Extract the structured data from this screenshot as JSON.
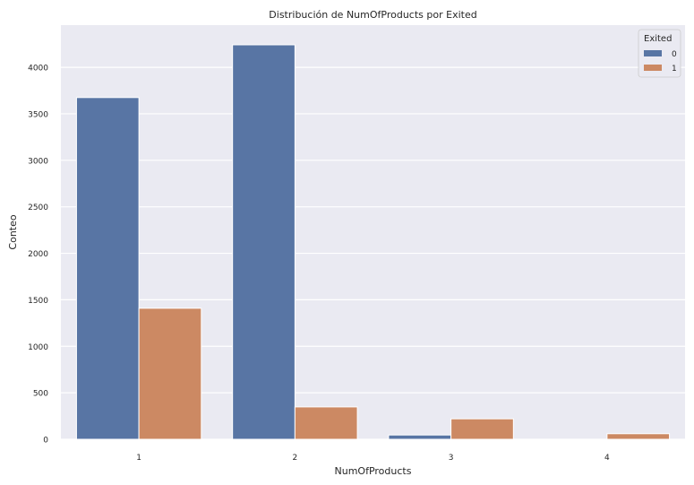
{
  "chart_data": {
    "type": "bar",
    "title": "Distribución de NumOfProducts por Exited",
    "xlabel": "NumOfProducts",
    "ylabel": "Conteo",
    "categories": [
      "1",
      "2",
      "3",
      "4"
    ],
    "series": [
      {
        "name": "0",
        "values": [
          3675,
          4242,
          46,
          0
        ],
        "color": "#5875a4"
      },
      {
        "name": "1",
        "values": [
          1409,
          348,
          220,
          60
        ],
        "color": "#cc8963"
      }
    ],
    "ylim": [
      0,
      4454
    ],
    "yticks": [
      0,
      500,
      1000,
      1500,
      2000,
      2500,
      3000,
      3500,
      4000
    ],
    "grid": true,
    "background": "#eaeaf2",
    "legend": {
      "title": "Exited",
      "position": "top-right"
    }
  }
}
